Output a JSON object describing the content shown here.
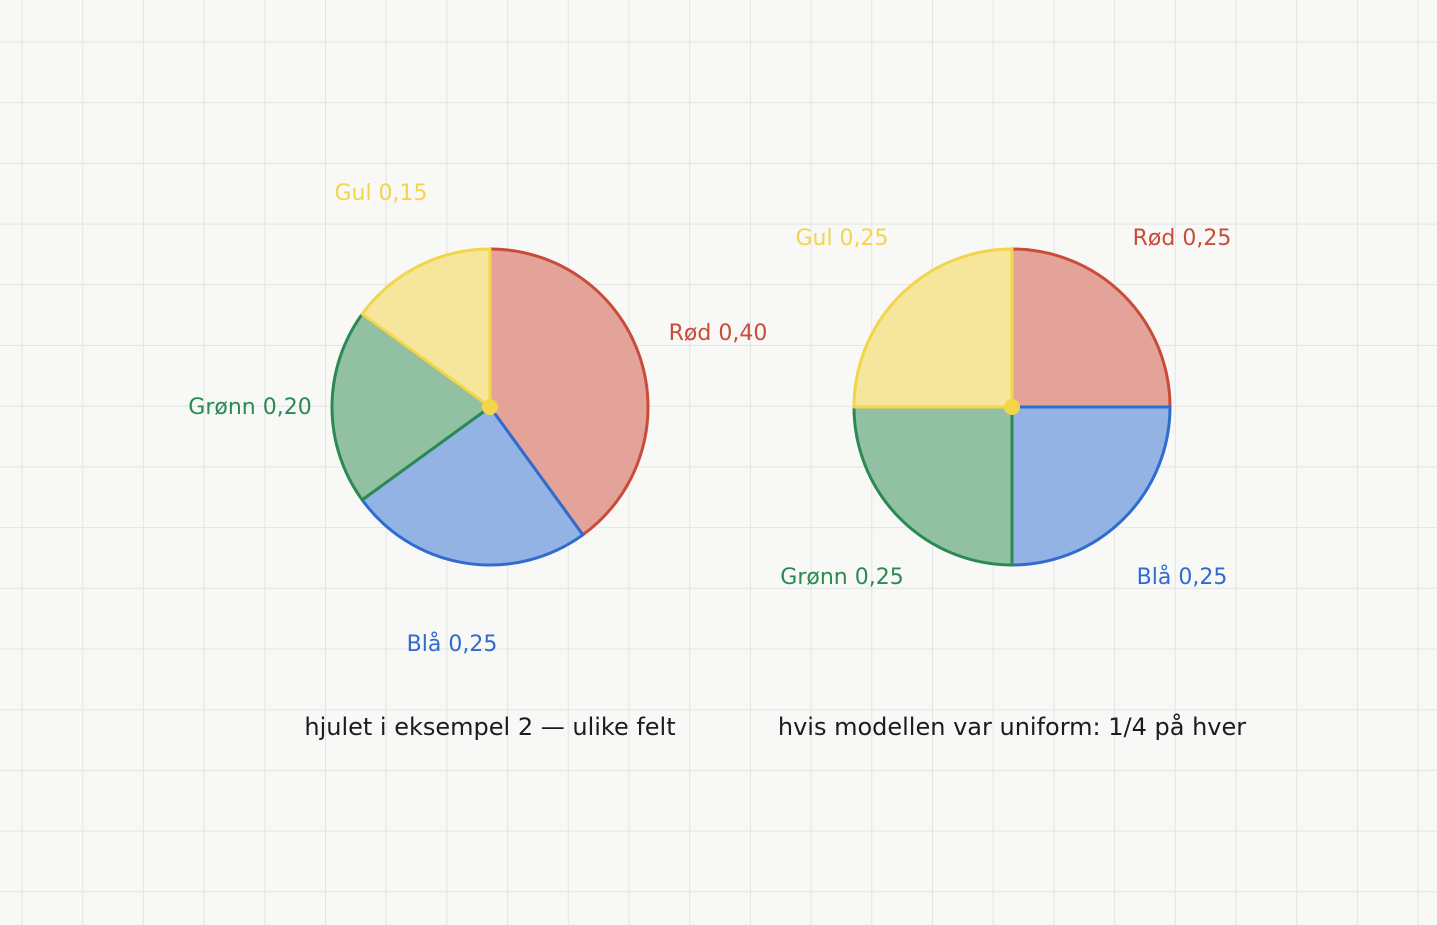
{
  "colors": {
    "background": "#f8f8f6",
    "grid": "#e4e4e2",
    "red_fill": "#e3a398",
    "red_stroke": "#c94c3a",
    "blue_fill": "#93b3e4",
    "blue_stroke": "#2f6bd0",
    "green_fill": "#92c0a3",
    "green_stroke": "#2a8a52",
    "yellow_fill": "#f6e69c",
    "yellow_stroke": "#f2d549",
    "center_dot": "#f2d549",
    "caption": "#1c1c1c"
  },
  "chart_data": [
    {
      "type": "pie",
      "caption": "hjulet i eksempel 2 — ulike felt",
      "slices": [
        {
          "label": "Rød 0,40",
          "value": 0.4,
          "color": "red"
        },
        {
          "label": "Blå 0,25",
          "value": 0.25,
          "color": "blue"
        },
        {
          "label": "Grønn 0,20",
          "value": 0.2,
          "color": "green"
        },
        {
          "label": "Gul 0,15",
          "value": 0.15,
          "color": "yellow"
        }
      ]
    },
    {
      "type": "pie",
      "caption": "hvis modellen var uniform: 1/4 på hver",
      "slices": [
        {
          "label": "Rød 0,25",
          "value": 0.25,
          "color": "red"
        },
        {
          "label": "Blå 0,25",
          "value": 0.25,
          "color": "blue"
        },
        {
          "label": "Grønn 0,25",
          "value": 0.25,
          "color": "green"
        },
        {
          "label": "Gul 0,25",
          "value": 0.25,
          "color": "yellow"
        }
      ]
    }
  ]
}
